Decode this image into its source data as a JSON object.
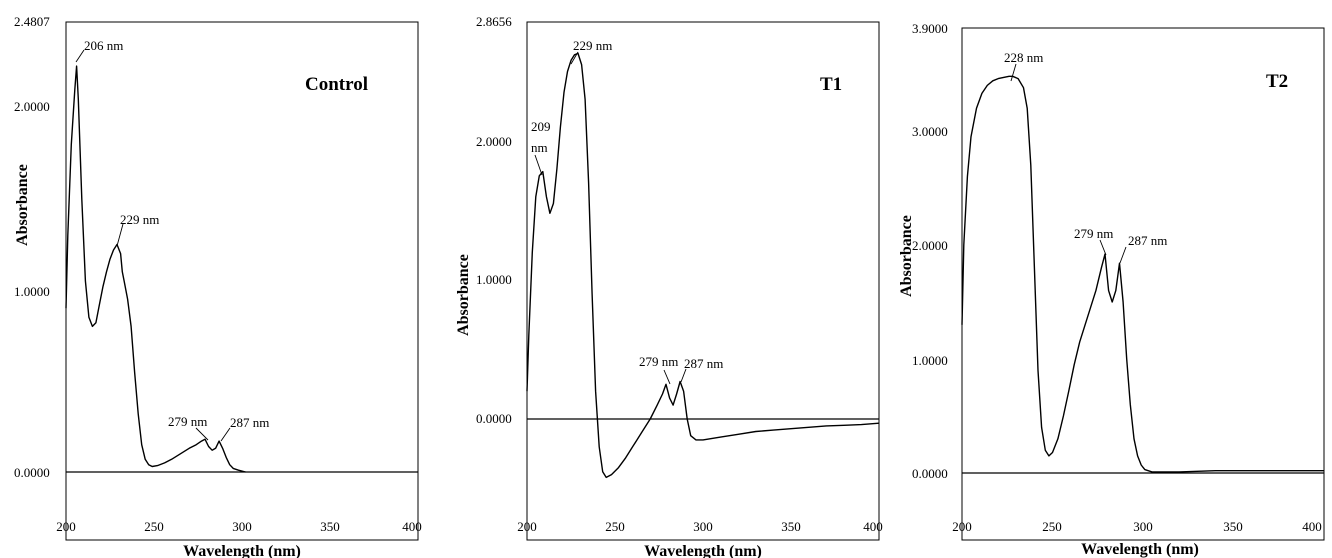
{
  "chart_data": [
    {
      "type": "line",
      "title": "Control",
      "xlabel": "Wavelength (nm)",
      "ylabel": "Absorbance",
      "xlim": [
        200,
        400
      ],
      "ylim": [
        -0.2,
        2.4807
      ],
      "xticks": [
        "200",
        "250",
        "300",
        "350",
        "400"
      ],
      "yticks": [
        "0.0000",
        "1.0000",
        "2.0000",
        "2.4807"
      ],
      "ytick_values": [
        0,
        1,
        2,
        2.4807
      ],
      "grid": false,
      "series": [
        {
          "x": [
            200,
            201,
            203,
            205,
            206,
            207,
            209,
            211,
            213,
            215,
            217,
            219,
            221,
            223,
            225,
            227,
            229,
            231,
            232,
            233,
            235,
            237,
            239,
            241,
            243,
            245,
            247,
            249,
            252,
            256,
            260,
            265,
            270,
            274,
            277,
            279,
            281,
            283,
            285,
            287,
            289,
            291,
            293,
            295,
            298,
            302
          ],
          "y": [
            0.9,
            1.3,
            1.8,
            2.1,
            2.23,
            2.05,
            1.5,
            1.05,
            0.85,
            0.8,
            0.82,
            0.92,
            1.02,
            1.1,
            1.17,
            1.22,
            1.25,
            1.2,
            1.1,
            1.05,
            0.95,
            0.8,
            0.55,
            0.32,
            0.15,
            0.07,
            0.04,
            0.03,
            0.035,
            0.05,
            0.07,
            0.1,
            0.13,
            0.15,
            0.17,
            0.18,
            0.14,
            0.12,
            0.13,
            0.17,
            0.13,
            0.08,
            0.04,
            0.02,
            0.01,
            0.0
          ]
        }
      ],
      "annotations": [
        {
          "text": "206 nm",
          "x": 206,
          "y": 2.23
        },
        {
          "text": "229 nm",
          "x": 229,
          "y": 1.25
        },
        {
          "text": "279 nm",
          "x": 279,
          "y": 0.18
        },
        {
          "text": "287 nm",
          "x": 287,
          "y": 0.17
        }
      ]
    },
    {
      "type": "line",
      "title": "T1",
      "xlabel": "Wavelength (nm)",
      "ylabel": "Absorbance",
      "xlim": [
        200,
        400
      ],
      "ylim": [
        -0.7,
        2.8656
      ],
      "xticks": [
        "200",
        "250",
        "300",
        "350",
        "400"
      ],
      "yticks": [
        "0.0000",
        "1.0000",
        "2.0000",
        "2.8656"
      ],
      "ytick_values": [
        0,
        1,
        2,
        2.8656
      ],
      "grid": false,
      "series": [
        {
          "x": [
            200,
            201,
            203,
            205,
            207,
            209,
            211,
            213,
            215,
            217,
            219,
            221,
            223,
            225,
            227,
            229,
            231,
            233,
            235,
            237,
            239,
            241,
            243,
            245,
            248,
            252,
            256,
            260,
            265,
            270,
            274,
            277,
            279,
            281,
            283,
            285,
            287,
            289,
            291,
            293,
            296,
            300,
            310,
            320,
            330,
            340,
            350,
            360,
            370,
            380,
            390,
            400
          ],
          "y": [
            0.2,
            0.6,
            1.2,
            1.6,
            1.75,
            1.78,
            1.6,
            1.48,
            1.55,
            1.8,
            2.1,
            2.35,
            2.5,
            2.58,
            2.62,
            2.63,
            2.55,
            2.3,
            1.7,
            0.9,
            0.2,
            -0.2,
            -0.38,
            -0.42,
            -0.4,
            -0.35,
            -0.28,
            -0.2,
            -0.1,
            0.0,
            0.1,
            0.18,
            0.25,
            0.15,
            0.1,
            0.18,
            0.27,
            0.2,
            0.0,
            -0.12,
            -0.15,
            -0.15,
            -0.13,
            -0.11,
            -0.09,
            -0.08,
            -0.07,
            -0.06,
            -0.05,
            -0.045,
            -0.04,
            -0.03
          ]
        }
      ],
      "annotations": [
        {
          "text": "209",
          "text2": "nm",
          "x": 209,
          "y": 1.78
        },
        {
          "text": "229 nm",
          "x": 229,
          "y": 2.63
        },
        {
          "text": "279 nm",
          "x": 279,
          "y": 0.25
        },
        {
          "text": "287 nm",
          "x": 287,
          "y": 0.27
        }
      ]
    },
    {
      "type": "line",
      "title": "T2",
      "xlabel": "Wavelength (nm)",
      "ylabel": "Absorbance",
      "xlim": [
        200,
        400
      ],
      "ylim": [
        -0.32,
        3.9
      ],
      "xticks": [
        "200",
        "250",
        "300",
        "350",
        "400"
      ],
      "yticks": [
        "0.0000",
        "1.0000",
        "2.0000",
        "3.0000",
        "3.9000"
      ],
      "ytick_values": [
        0,
        1,
        2,
        3,
        3.9
      ],
      "grid": false,
      "series": [
        {
          "x": [
            200,
            201,
            203,
            205,
            208,
            211,
            214,
            217,
            220,
            223,
            226,
            228,
            231,
            234,
            236,
            238,
            240,
            242,
            244,
            246,
            248,
            250,
            253,
            256,
            259,
            262,
            265,
            268,
            271,
            274,
            277,
            279,
            281,
            283,
            285,
            287,
            289,
            291,
            293,
            295,
            297,
            299,
            301,
            305,
            310,
            320,
            340,
            360,
            380,
            400
          ],
          "y": [
            1.3,
            2.0,
            2.6,
            2.95,
            3.2,
            3.33,
            3.4,
            3.44,
            3.46,
            3.47,
            3.48,
            3.48,
            3.46,
            3.38,
            3.2,
            2.7,
            1.8,
            0.9,
            0.4,
            0.2,
            0.15,
            0.18,
            0.3,
            0.5,
            0.72,
            0.95,
            1.15,
            1.3,
            1.45,
            1.6,
            1.8,
            1.92,
            1.6,
            1.5,
            1.6,
            1.84,
            1.5,
            1.0,
            0.6,
            0.3,
            0.15,
            0.07,
            0.03,
            0.01,
            0.01,
            0.01,
            0.02,
            0.02,
            0.02,
            0.02
          ]
        }
      ],
      "annotations": [
        {
          "text": "228 nm",
          "x": 228,
          "y": 3.48
        },
        {
          "text": "279 nm",
          "x": 279,
          "y": 1.92
        },
        {
          "text": "287 nm",
          "x": 287,
          "y": 1.84
        }
      ]
    }
  ]
}
